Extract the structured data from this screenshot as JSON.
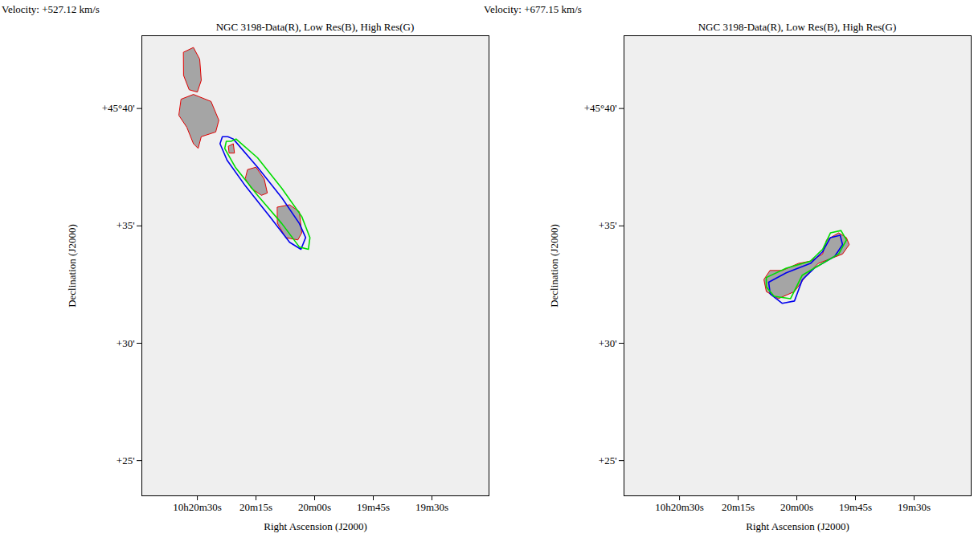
{
  "chart_data": [
    {
      "type": "contour",
      "subtitle": "Velocity: +527.12 km/s",
      "title": "NGC 3198-Data(R), Low Res(B), High Res(G)",
      "x_label": "Right Ascension (J2000)",
      "y_label": "Declination (J2000)",
      "xlim": [
        1244.2,
        1155.4
      ],
      "ylim": [
        23.5,
        43.1
      ],
      "xticks": [
        {
          "value": 1230,
          "label": "10h20m30s"
        },
        {
          "value": 1215,
          "label": "20m15s"
        },
        {
          "value": 1200,
          "label": "20m00s"
        },
        {
          "value": 1185,
          "label": "19m45s"
        },
        {
          "value": 1170,
          "label": "19m30s"
        }
      ],
      "yticks": [
        {
          "value": 40,
          "label": "+45°40'"
        },
        {
          "value": 35,
          "label": "+35'"
        },
        {
          "value": 30,
          "label": "+30'"
        },
        {
          "value": 25,
          "label": "+25'"
        }
      ],
      "series": [
        {
          "color": "#e00000",
          "type": "area",
          "polygons": [
            [
              [
                1209.5,
                35.8
              ],
              [
                1206.4,
                35.9
              ],
              [
                1203.9,
                35.6
              ],
              [
                1203.3,
                34.7
              ],
              [
                1204.3,
                34.4
              ],
              [
                1207.4,
                34.5
              ],
              [
                1209.5,
                35.1
              ]
            ],
            [
              [
                1217.1,
                37.4
              ],
              [
                1215.0,
                37.5
              ],
              [
                1212.9,
                37.0
              ],
              [
                1212.1,
                36.4
              ],
              [
                1213.6,
                36.3
              ],
              [
                1216.2,
                36.6
              ],
              [
                1217.7,
                37.0
              ]
            ],
            [
              [
                1222.0,
                38.4
              ],
              [
                1220.8,
                38.5
              ],
              [
                1220.5,
                38.1
              ],
              [
                1221.8,
                38.1
              ]
            ],
            [
              [
                1233.5,
                42.4
              ],
              [
                1231.0,
                42.6
              ],
              [
                1229.4,
                42.1
              ],
              [
                1229.0,
                41.2
              ],
              [
                1230.0,
                40.7
              ],
              [
                1232.1,
                40.8
              ],
              [
                1233.5,
                41.4
              ]
            ],
            [
              [
                1234.1,
                40.4
              ],
              [
                1231.0,
                40.6
              ],
              [
                1226.5,
                40.3
              ],
              [
                1224.5,
                39.5
              ],
              [
                1225.3,
                39.0
              ],
              [
                1229.0,
                38.8
              ],
              [
                1229.8,
                38.3
              ],
              [
                1231.0,
                38.5
              ],
              [
                1232.7,
                39.2
              ],
              [
                1234.7,
                39.7
              ]
            ]
          ]
        },
        {
          "color": "#0000ee",
          "type": "line",
          "polygons": [
            [
              [
                1222.2,
                38.8
              ],
              [
                1220.8,
                38.7
              ],
              [
                1214.6,
                37.5
              ],
              [
                1208.4,
                36.2
              ],
              [
                1203.9,
                35.1
              ],
              [
                1202.3,
                34.5
              ],
              [
                1203.5,
                34.0
              ],
              [
                1206.4,
                34.3
              ],
              [
                1211.5,
                35.4
              ],
              [
                1217.7,
                36.7
              ],
              [
                1222.4,
                37.8
              ],
              [
                1224.2,
                38.5
              ],
              [
                1223.6,
                38.8
              ]
            ]
          ]
        },
        {
          "color": "#00dd00",
          "type": "line",
          "polygons": [
            [
              [
                1221.4,
                38.6
              ],
              [
                1220.1,
                38.7
              ],
              [
                1214.6,
                37.9
              ],
              [
                1208.4,
                36.6
              ],
              [
                1203.3,
                35.4
              ],
              [
                1201.2,
                34.5
              ],
              [
                1201.6,
                34.0
              ],
              [
                1203.9,
                34.1
              ],
              [
                1208.4,
                35.1
              ],
              [
                1214.6,
                36.3
              ],
              [
                1220.3,
                37.5
              ],
              [
                1223.0,
                38.3
              ],
              [
                1222.6,
                38.6
              ]
            ]
          ]
        }
      ]
    },
    {
      "type": "contour",
      "subtitle": "Velocity: +677.15 km/s",
      "title": "NGC 3198-Data(R), Low Res(B), High Res(G)",
      "x_label": "Right Ascension (J2000)",
      "y_label": "Declination (J2000)",
      "xlim": [
        1244.2,
        1155.4
      ],
      "ylim": [
        23.5,
        43.1
      ],
      "xticks": [
        {
          "value": 1230,
          "label": "10h20m30s"
        },
        {
          "value": 1215,
          "label": "20m15s"
        },
        {
          "value": 1200,
          "label": "20m00s"
        },
        {
          "value": 1185,
          "label": "19m45s"
        },
        {
          "value": 1170,
          "label": "19m30s"
        }
      ],
      "yticks": [
        {
          "value": 40,
          "label": "+45°40'"
        },
        {
          "value": 35,
          "label": "+35'"
        },
        {
          "value": 30,
          "label": "+30'"
        },
        {
          "value": 25,
          "label": "+25'"
        }
      ],
      "series": [
        {
          "color": "#e00000",
          "type": "area",
          "polygons": [
            [
              [
                1206.8,
                33.1
              ],
              [
                1203.7,
                33.1
              ],
              [
                1199.6,
                33.4
              ],
              [
                1196.5,
                33.5
              ],
              [
                1193.4,
                33.8
              ],
              [
                1192.4,
                34.4
              ],
              [
                1189.3,
                34.7
              ],
              [
                1187.3,
                34.5
              ],
              [
                1186.6,
                34.2
              ],
              [
                1188.3,
                33.8
              ],
              [
                1191.4,
                33.6
              ],
              [
                1194.5,
                33.4
              ],
              [
                1197.5,
                32.9
              ],
              [
                1200.6,
                32.2
              ],
              [
                1204.7,
                31.9
              ],
              [
                1207.8,
                32.2
              ],
              [
                1208.4,
                32.7
              ]
            ]
          ]
        },
        {
          "color": "#0000ee",
          "type": "line",
          "polygons": [
            [
              [
                1207.2,
                32.6
              ],
              [
                1202.7,
                33.0
              ],
              [
                1196.5,
                33.4
              ],
              [
                1193.4,
                33.9
              ],
              [
                1191.4,
                34.5
              ],
              [
                1188.9,
                34.6
              ],
              [
                1188.3,
                34.2
              ],
              [
                1190.3,
                33.7
              ],
              [
                1195.5,
                33.2
              ],
              [
                1198.6,
                32.7
              ],
              [
                1200.6,
                31.8
              ],
              [
                1203.7,
                31.7
              ],
              [
                1206.8,
                32.1
              ]
            ]
          ]
        },
        {
          "color": "#00dd00",
          "type": "line",
          "polygons": [
            [
              [
                1207.8,
                32.8
              ],
              [
                1202.7,
                33.2
              ],
              [
                1196.5,
                33.5
              ],
              [
                1193.4,
                34.0
              ],
              [
                1191.4,
                34.7
              ],
              [
                1188.7,
                34.8
              ],
              [
                1187.3,
                34.4
              ],
              [
                1189.3,
                33.8
              ],
              [
                1194.5,
                33.3
              ],
              [
                1198.6,
                32.9
              ],
              [
                1201.6,
                31.9
              ],
              [
                1205.8,
                32.0
              ],
              [
                1207.8,
                32.4
              ]
            ]
          ]
        }
      ]
    }
  ]
}
